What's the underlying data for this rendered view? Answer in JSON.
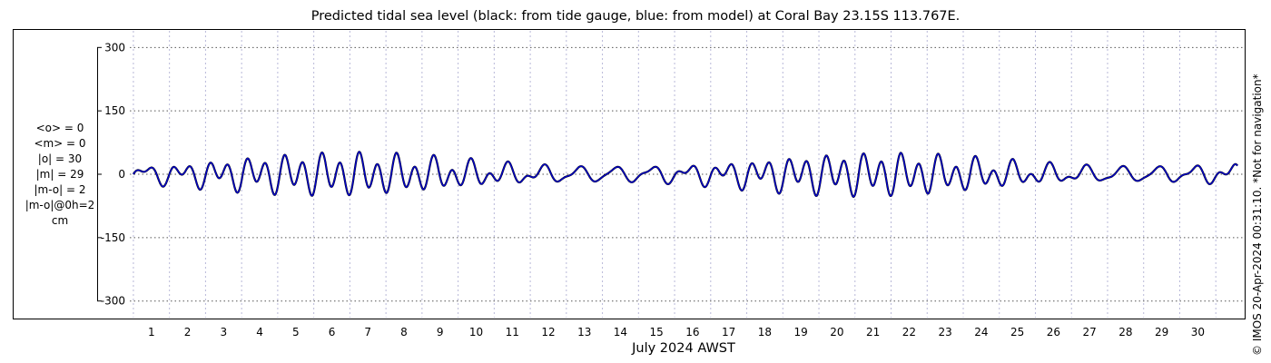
{
  "chart_data": {
    "type": "line",
    "title": "Predicted tidal sea level (black: from tide gauge, blue: from model) at Coral Bay 23.15S 113.767E.",
    "xlabel": "July 2024 AWST",
    "ylabel": "",
    "ylim": [
      -320,
      320
    ],
    "yticks": [
      300,
      150,
      0,
      -150,
      -300
    ],
    "ytick_labels": [
      "300",
      "150",
      "0",
      "-150",
      "-300"
    ],
    "xlim": [
      0.2,
      31.3
    ],
    "xticks": [
      1,
      2,
      3,
      4,
      5,
      6,
      7,
      8,
      9,
      10,
      11,
      12,
      13,
      14,
      15,
      16,
      17,
      18,
      19,
      20,
      21,
      22,
      23,
      24,
      25,
      26,
      27,
      28,
      29,
      30
    ],
    "xtick_labels": [
      "1",
      "2",
      "3",
      "4",
      "5",
      "6",
      "7",
      "8",
      "9",
      "10",
      "11",
      "12",
      "13",
      "14",
      "15",
      "16",
      "17",
      "18",
      "19",
      "20",
      "21",
      "22",
      "23",
      "24",
      "25",
      "26",
      "27",
      "28",
      "29",
      "30"
    ],
    "grid": true,
    "series": [
      {
        "color": "#000000",
        "data_start_day": 0.5,
        "data_end_day": 31.1,
        "constituents": {
          "semidiurnal_amp": 40,
          "diurnal_amp": 16,
          "spring_neap_days": 14.77
        }
      },
      {
        "color": "#0000cc",
        "data_start_day": 0.5,
        "data_end_day": 31.1,
        "constituents": {
          "semidiurnal_amp": 40,
          "diurnal_amp": 16,
          "spring_neap_days": 14.77
        }
      }
    ],
    "stats_lines": [
      "<o> = 0",
      "<m> = 0",
      "|o| = 30",
      "|m| = 29",
      "|m-o| = 2",
      "|m-o|@0h=2",
      "cm"
    ],
    "credit": "© IMOS 20-Apr-2024 00:31:10. *Not for navigation*"
  }
}
